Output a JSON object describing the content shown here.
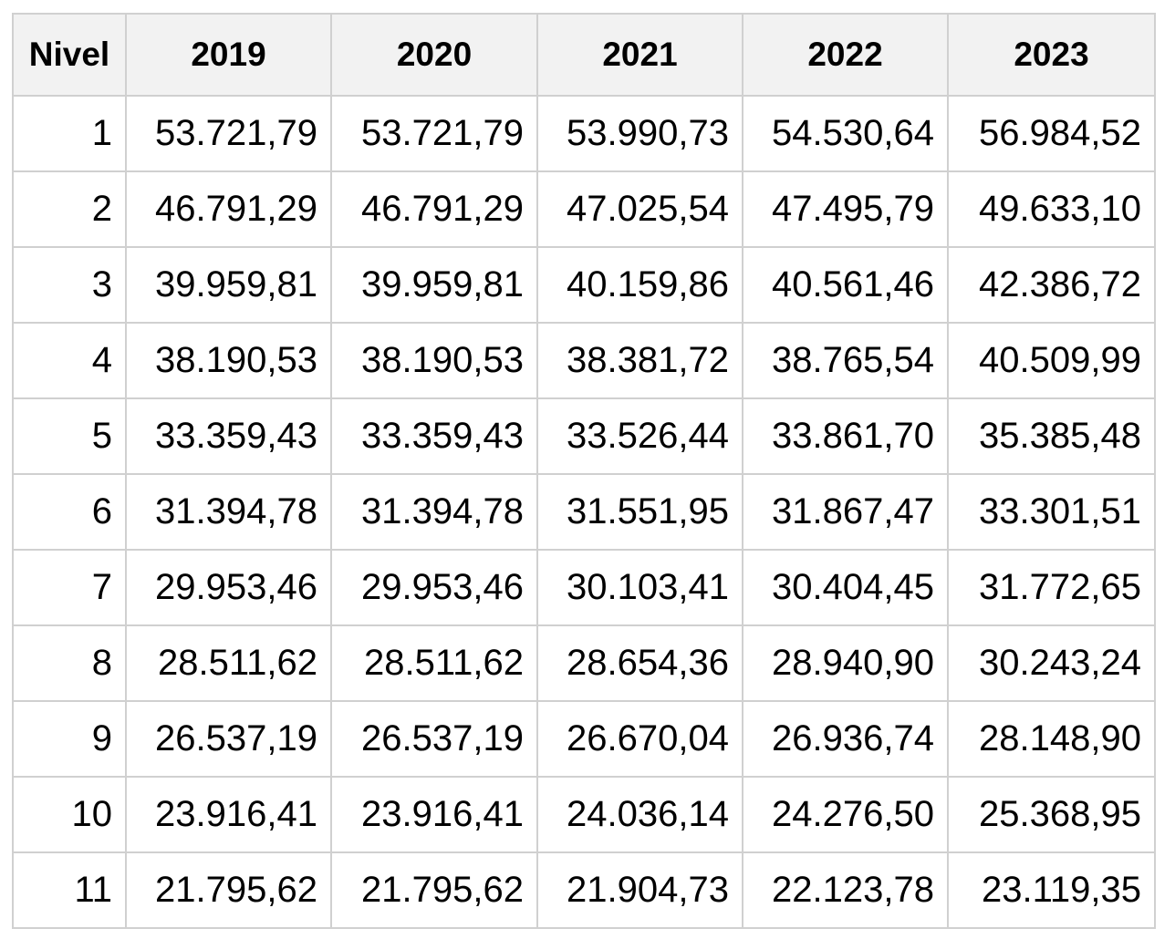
{
  "table": {
    "header": [
      "Nivel",
      "2019",
      "2020",
      "2021",
      "2022",
      "2023"
    ],
    "rows": [
      [
        "1",
        "53.721,79",
        "53.721,79",
        "53.990,73",
        "54.530,64",
        "56.984,52"
      ],
      [
        "2",
        "46.791,29",
        "46.791,29",
        "47.025,54",
        "47.495,79",
        "49.633,10"
      ],
      [
        "3",
        "39.959,81",
        "39.959,81",
        "40.159,86",
        "40.561,46",
        "42.386,72"
      ],
      [
        "4",
        "38.190,53",
        "38.190,53",
        "38.381,72",
        "38.765,54",
        "40.509,99"
      ],
      [
        "5",
        "33.359,43",
        "33.359,43",
        "33.526,44",
        "33.861,70",
        "35.385,48"
      ],
      [
        "6",
        "31.394,78",
        "31.394,78",
        "31.551,95",
        "31.867,47",
        "33.301,51"
      ],
      [
        "7",
        "29.953,46",
        "29.953,46",
        "30.103,41",
        "30.404,45",
        "31.772,65"
      ],
      [
        "8",
        "28.511,62",
        "28.511,62",
        "28.654,36",
        "28.940,90",
        "30.243,24"
      ],
      [
        "9",
        "26.537,19",
        "26.537,19",
        "26.670,04",
        "26.936,74",
        "28.148,90"
      ],
      [
        "10",
        "23.916,41",
        "23.916,41",
        "24.036,14",
        "24.276,50",
        "25.368,95"
      ],
      [
        "11",
        "21.795,62",
        "21.795,62",
        "21.904,73",
        "22.123,78",
        "23.119,35"
      ]
    ]
  }
}
